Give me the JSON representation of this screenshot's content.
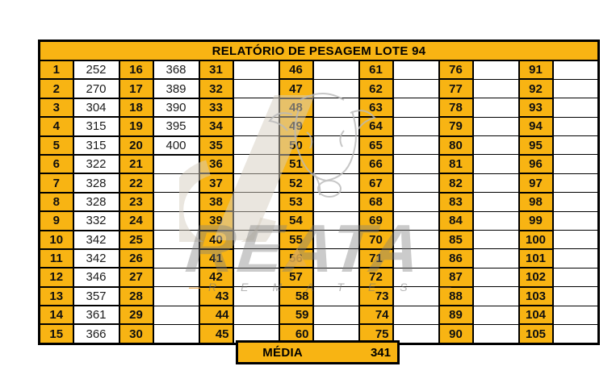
{
  "report": {
    "title": "RELATÓRIO DE PESAGEM LOTE  94",
    "media_label": "MÉDIA",
    "media_value": "341"
  },
  "colors": {
    "cell_yellow": "#F8B413",
    "border_black": "#000000",
    "watermark_gray": "#C7C7C7",
    "watermark_accent_orange": "#E8A33D"
  },
  "watermark": {
    "brand": "REATA",
    "subtitle_letters": "REMATES",
    "left_dash": "—",
    "right_dash": "—"
  },
  "weights": {
    "col_pairs": [
      {
        "numbers": [
          1,
          2,
          3,
          4,
          5,
          6,
          7,
          8,
          9,
          10,
          11,
          12,
          13,
          14,
          15
        ],
        "values": [
          "252",
          "270",
          "304",
          "315",
          "315",
          "322",
          "328",
          "328",
          "332",
          "342",
          "342",
          "346",
          "357",
          "361",
          "366"
        ]
      },
      {
        "numbers": [
          16,
          17,
          18,
          19,
          20,
          21,
          22,
          23,
          24,
          25,
          26,
          27,
          28,
          29,
          30
        ],
        "values": [
          "368",
          "389",
          "390",
          "395",
          "400",
          "",
          "",
          "",
          "",
          "",
          "",
          "",
          "",
          "",
          ""
        ]
      },
      {
        "numbers": [
          31,
          32,
          33,
          34,
          35,
          36,
          37,
          38,
          39,
          40,
          41,
          42,
          43,
          44,
          45
        ],
        "values": [
          "",
          "",
          "",
          "",
          "",
          "",
          "",
          "",
          "",
          "",
          "",
          "",
          "",
          "",
          ""
        ]
      },
      {
        "numbers": [
          46,
          47,
          48,
          49,
          50,
          51,
          52,
          53,
          54,
          55,
          56,
          57,
          58,
          59,
          60
        ],
        "values": [
          "",
          "",
          "",
          "",
          "",
          "",
          "",
          "",
          "",
          "",
          "",
          "",
          "",
          "",
          ""
        ]
      },
      {
        "numbers": [
          61,
          62,
          63,
          64,
          65,
          66,
          67,
          68,
          69,
          70,
          71,
          72,
          73,
          74,
          75
        ],
        "values": [
          "",
          "",
          "",
          "",
          "",
          "",
          "",
          "",
          "",
          "",
          "",
          "",
          "",
          "",
          ""
        ]
      },
      {
        "numbers": [
          76,
          77,
          78,
          79,
          80,
          81,
          82,
          83,
          84,
          85,
          86,
          87,
          88,
          89,
          90
        ],
        "values": [
          "",
          "",
          "",
          "",
          "",
          "",
          "",
          "",
          "",
          "",
          "",
          "",
          "",
          "",
          ""
        ]
      },
      {
        "numbers": [
          91,
          92,
          93,
          94,
          95,
          96,
          97,
          98,
          99,
          100,
          101,
          102,
          103,
          104,
          105
        ],
        "values": [
          "",
          "",
          "",
          "",
          "",
          "",
          "",
          "",
          "",
          "",
          "",
          "",
          "",
          "",
          ""
        ]
      }
    ],
    "right_aligned_numbers": [
      43,
      44,
      45,
      58,
      59,
      60,
      73,
      74,
      75
    ]
  }
}
